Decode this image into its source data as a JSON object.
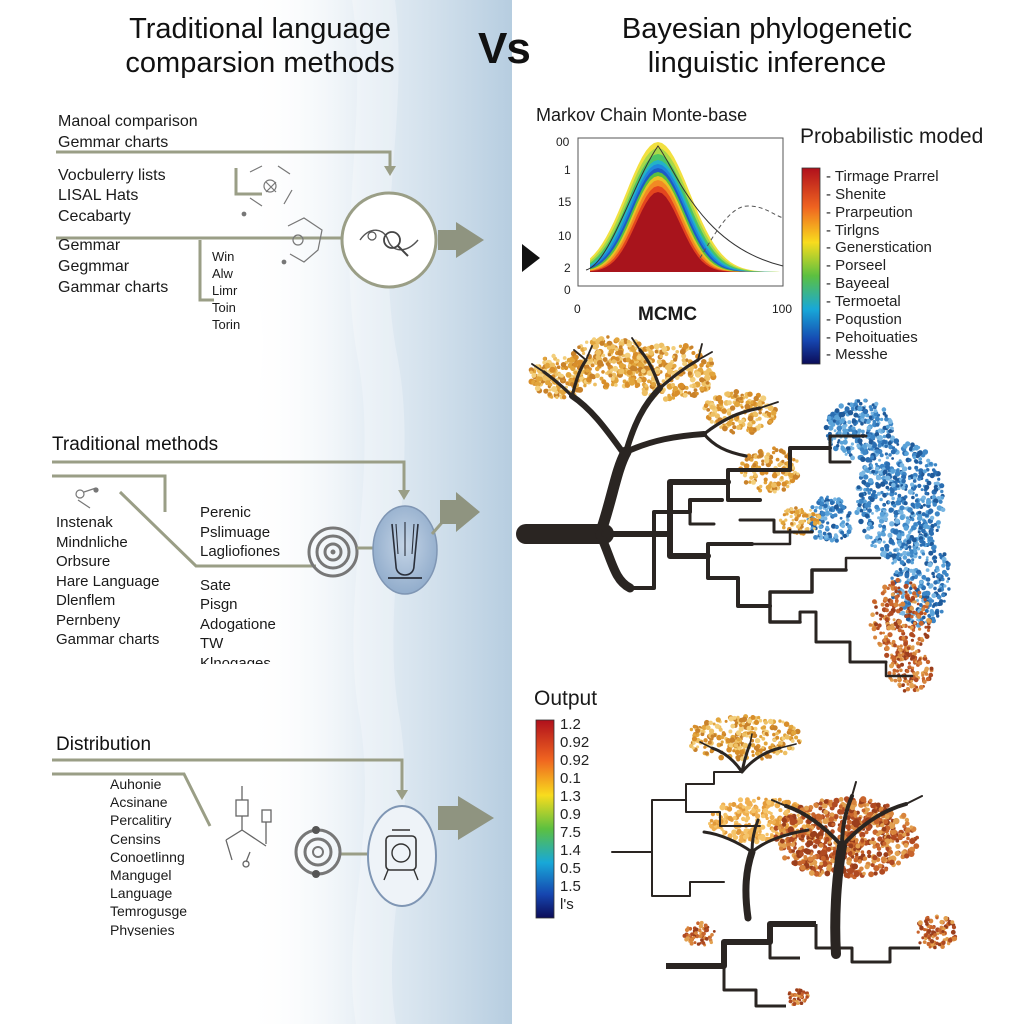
{
  "header": {
    "left_title_line1": "Traditional language",
    "left_title_line2": "comparsion methods",
    "vs_label": "Vs",
    "right_title_line1": "Bayesian phylogenetic",
    "right_title_line2": "linguistic inference"
  },
  "left": {
    "section1": {
      "items": [
        "Manoal comparison",
        "Gemmar charts",
        "Vocbulerry lists",
        "LISAL Hats",
        "Cecabarty",
        "Gemmar",
        "Gegmmar",
        "Gammar charts"
      ],
      "small_items": [
        "Win",
        "Alw",
        "Limr",
        "Toin",
        "Torin"
      ]
    },
    "section2": {
      "heading": "Traditional methods",
      "items": [
        "Instenak",
        "Mindnliche",
        "Orbsure",
        "Hare Language",
        "Dlenflem",
        "Pernbeny",
        "Gammar charts"
      ],
      "mid_items": [
        "Perenic",
        "Pslimuage",
        "Lagliofiones",
        "Sate",
        "Pisgn",
        "Adogatione",
        "TW",
        "Klnogages"
      ]
    },
    "section3": {
      "heading": "Distribution",
      "items": [
        "Auhonie",
        "Acsinane",
        "Percalitiry",
        "Censins",
        "Conoetlinng",
        "Mangugel",
        "Language",
        "Temrogusge",
        "Physenies"
      ]
    }
  },
  "right": {
    "mcmc": {
      "title": "Markov Chain Monte-base",
      "xlabel": "MCMC",
      "y_ticks": [
        "00",
        "1",
        "15",
        "10",
        "2",
        "0"
      ],
      "x_ticks": [
        "0",
        "100"
      ]
    },
    "probabilistic": {
      "heading": "Probabilistic moded",
      "legend": [
        "Tirmage Prarrel",
        "Shenite",
        "Prarpeution",
        "Tirlgns",
        "Generstication",
        "Porseel",
        "Bayeeal",
        "Termoetal",
        "Poqustion",
        "Pehoituaties",
        "Messhe"
      ]
    },
    "output": {
      "heading": "Output",
      "ticks": [
        "1.2",
        "0.92",
        "0.92",
        "0.1",
        "1.3",
        "0.9",
        "7.5",
        "1.4",
        "0.5",
        "1.5",
        "l's"
      ]
    }
  },
  "colors": {
    "band": "#b9cfe0",
    "connector": "#9a9e86",
    "arrow": "#8f9480",
    "trunk": "#2a2522",
    "foliage_gold": "#e2a53c",
    "foliage_blue": "#3d86c6",
    "foliage_rust": "#c8642c"
  },
  "icons": [
    "magnifier-icon",
    "concentric-target-icon",
    "glass-vessel-icon",
    "flask-icon",
    "flow-arrow-icon"
  ]
}
